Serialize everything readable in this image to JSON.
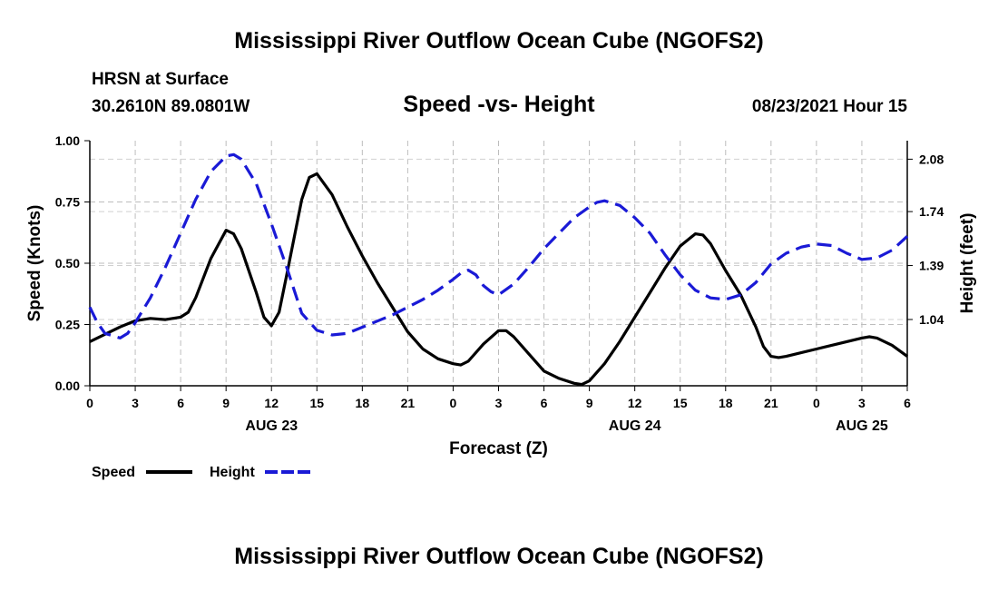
{
  "page": {
    "title_top": "Mississippi River Outflow Ocean Cube (NGOFS2)",
    "title_bottom": "Mississippi River Outflow Ocean Cube (NGOFS2)",
    "station": "HRSN at Surface",
    "coords": "30.2610N  89.0801W",
    "datetime": "08/23/2021 Hour 15"
  },
  "chart_data": {
    "type": "line",
    "title": "Speed -vs- Height",
    "xlabel": "Forecast (Z)",
    "ylabel_left": "Speed (Knots)",
    "ylabel_right": "Height (feet)",
    "x_range": [
      0,
      54
    ],
    "xticks": [
      0,
      3,
      6,
      9,
      12,
      15,
      18,
      21,
      24,
      27,
      30,
      33,
      36,
      39,
      42,
      45,
      48,
      51,
      54
    ],
    "xtick_labels": [
      "0",
      "3",
      "6",
      "9",
      "12",
      "15",
      "18",
      "21",
      "0",
      "3",
      "6",
      "9",
      "12",
      "15",
      "18",
      "21",
      "0",
      "3",
      "6"
    ],
    "date_labels": [
      {
        "x": 12,
        "label": "AUG 23"
      },
      {
        "x": 36,
        "label": "AUG 24"
      },
      {
        "x": 51,
        "label": "AUG 25"
      }
    ],
    "ylim_left": [
      0,
      1.0
    ],
    "yticks_left": [
      0.0,
      0.25,
      0.5,
      0.75,
      1.0
    ],
    "ytick_labels_left": [
      "0.00",
      "0.25",
      "0.50",
      "0.75",
      "1.00"
    ],
    "ylim_right": [
      0.61,
      2.2
    ],
    "yticks_right": [
      1.04,
      1.39,
      1.74,
      2.08
    ],
    "ytick_labels_right": [
      "1.04",
      "1.39",
      "1.74",
      "2.08"
    ],
    "grid": true,
    "legend": [
      {
        "name": "Speed",
        "color": "#000000",
        "style": "solid"
      },
      {
        "name": "Height",
        "color": "#1a1ad6",
        "style": "dashed"
      }
    ],
    "series": [
      {
        "name": "Speed",
        "axis": "left",
        "color": "#000000",
        "style": "solid",
        "points": [
          [
            0,
            0.18
          ],
          [
            1,
            0.21
          ],
          [
            2,
            0.24
          ],
          [
            3,
            0.265
          ],
          [
            4,
            0.275
          ],
          [
            5,
            0.27
          ],
          [
            6,
            0.28
          ],
          [
            6.5,
            0.3
          ],
          [
            7,
            0.36
          ],
          [
            8,
            0.52
          ],
          [
            9,
            0.635
          ],
          [
            9.5,
            0.62
          ],
          [
            10,
            0.56
          ],
          [
            11,
            0.38
          ],
          [
            11.5,
            0.28
          ],
          [
            12,
            0.245
          ],
          [
            12.5,
            0.3
          ],
          [
            13,
            0.45
          ],
          [
            14,
            0.76
          ],
          [
            14.5,
            0.85
          ],
          [
            15,
            0.865
          ],
          [
            16,
            0.78
          ],
          [
            17,
            0.65
          ],
          [
            18,
            0.53
          ],
          [
            19,
            0.42
          ],
          [
            20,
            0.32
          ],
          [
            21,
            0.22
          ],
          [
            22,
            0.15
          ],
          [
            23,
            0.11
          ],
          [
            24,
            0.09
          ],
          [
            24.5,
            0.085
          ],
          [
            25,
            0.1
          ],
          [
            26,
            0.17
          ],
          [
            27,
            0.225
          ],
          [
            27.5,
            0.225
          ],
          [
            28,
            0.2
          ],
          [
            29,
            0.13
          ],
          [
            30,
            0.06
          ],
          [
            31,
            0.03
          ],
          [
            32,
            0.01
          ],
          [
            32.5,
            0.005
          ],
          [
            33,
            0.02
          ],
          [
            34,
            0.09
          ],
          [
            35,
            0.18
          ],
          [
            36,
            0.28
          ],
          [
            37,
            0.38
          ],
          [
            38,
            0.48
          ],
          [
            39,
            0.57
          ],
          [
            40,
            0.62
          ],
          [
            40.5,
            0.615
          ],
          [
            41,
            0.58
          ],
          [
            42,
            0.47
          ],
          [
            43,
            0.37
          ],
          [
            44,
            0.24
          ],
          [
            44.5,
            0.16
          ],
          [
            45,
            0.12
          ],
          [
            45.5,
            0.115
          ],
          [
            46,
            0.12
          ],
          [
            48,
            0.15
          ],
          [
            50,
            0.18
          ],
          [
            51,
            0.195
          ],
          [
            51.5,
            0.2
          ],
          [
            52,
            0.195
          ],
          [
            53,
            0.165
          ],
          [
            54,
            0.12
          ]
        ]
      },
      {
        "name": "Height",
        "axis": "right",
        "color": "#1a1ad6",
        "style": "dashed",
        "points": [
          [
            0,
            1.12
          ],
          [
            0.5,
            1.02
          ],
          [
            1,
            0.95
          ],
          [
            2,
            0.92
          ],
          [
            2.5,
            0.95
          ],
          [
            3,
            1.02
          ],
          [
            4,
            1.18
          ],
          [
            5,
            1.38
          ],
          [
            6,
            1.6
          ],
          [
            7,
            1.82
          ],
          [
            8,
            2.0
          ],
          [
            9,
            2.1
          ],
          [
            9.5,
            2.11
          ],
          [
            10,
            2.08
          ],
          [
            11,
            1.92
          ],
          [
            12,
            1.66
          ],
          [
            13,
            1.38
          ],
          [
            14,
            1.08
          ],
          [
            15,
            0.97
          ],
          [
            16,
            0.94
          ],
          [
            17,
            0.95
          ],
          [
            18,
            0.99
          ],
          [
            19,
            1.03
          ],
          [
            20,
            1.07
          ],
          [
            21,
            1.12
          ],
          [
            22,
            1.17
          ],
          [
            23,
            1.23
          ],
          [
            24,
            1.3
          ],
          [
            24.5,
            1.34
          ],
          [
            25,
            1.36
          ],
          [
            25.5,
            1.33
          ],
          [
            26,
            1.26
          ],
          [
            26.5,
            1.22
          ],
          [
            27,
            1.2
          ],
          [
            28,
            1.27
          ],
          [
            29,
            1.38
          ],
          [
            30,
            1.5
          ],
          [
            31,
            1.6
          ],
          [
            32,
            1.7
          ],
          [
            33,
            1.77
          ],
          [
            33.5,
            1.8
          ],
          [
            34,
            1.81
          ],
          [
            35,
            1.78
          ],
          [
            36,
            1.7
          ],
          [
            37,
            1.6
          ],
          [
            38,
            1.46
          ],
          [
            39,
            1.33
          ],
          [
            40,
            1.23
          ],
          [
            41,
            1.18
          ],
          [
            42,
            1.17
          ],
          [
            43,
            1.2
          ],
          [
            44,
            1.28
          ],
          [
            45,
            1.4
          ],
          [
            46,
            1.47
          ],
          [
            47,
            1.51
          ],
          [
            48,
            1.53
          ],
          [
            49,
            1.52
          ],
          [
            50,
            1.47
          ],
          [
            51,
            1.43
          ],
          [
            52,
            1.44
          ],
          [
            53,
            1.49
          ],
          [
            54,
            1.58
          ]
        ]
      }
    ]
  }
}
